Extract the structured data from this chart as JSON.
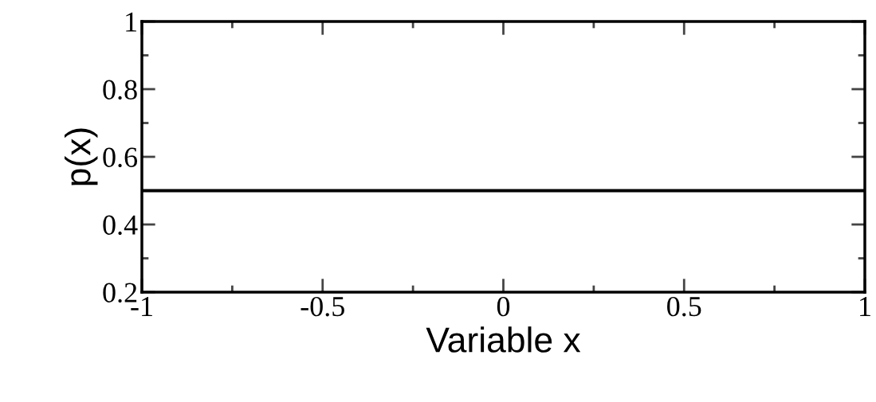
{
  "chart_data": {
    "type": "line",
    "xlabel": "Variable x",
    "ylabel": "p(x)",
    "x": [
      -1,
      1
    ],
    "series": [
      {
        "color": "#000000",
        "values": [
          0.5,
          0.5
        ]
      }
    ],
    "xlim": [
      -1,
      1
    ],
    "xticks": [
      -1,
      -0.5,
      0,
      0.5,
      1
    ],
    "ylim": [
      0.2,
      1
    ],
    "yticks": [
      0.2,
      0.4,
      0.6,
      0.8,
      1
    ],
    "grid": false,
    "legend": false,
    "marker": "none",
    "line_style": "solid"
  }
}
